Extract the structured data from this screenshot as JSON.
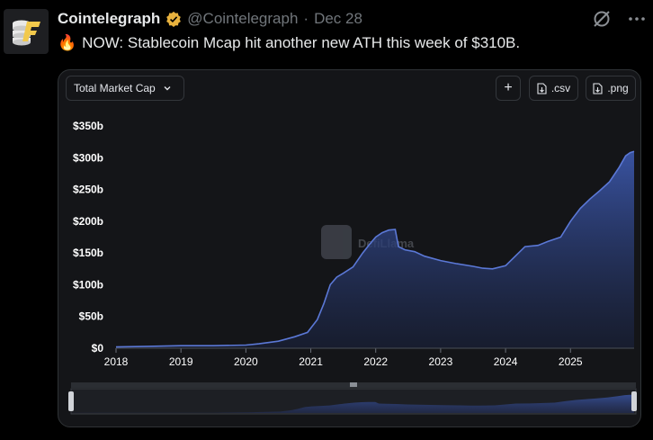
{
  "tweet": {
    "author": "Cointelegraph",
    "handle": "@Cointelegraph",
    "separator": "·",
    "date": "Dec 28",
    "text": "NOW: Stablecoin Mcap hit another new ATH this week of $310B.",
    "fire_emoji": "🔥"
  },
  "widget": {
    "metric_select": "Total Market Cap",
    "add_label": "+",
    "csv_label": ".csv",
    "png_label": ".png",
    "watermark": "DefiLlama"
  },
  "colors": {
    "accent_fill": "#3b56a8",
    "line": "#5b78d6",
    "badge": "#e8b23e"
  },
  "chart_data": {
    "type": "area",
    "title": "",
    "xlabel": "",
    "ylabel": "",
    "x_ticks": [
      "2018",
      "2019",
      "2020",
      "2021",
      "2022",
      "2023",
      "2024",
      "2025"
    ],
    "y_ticks": [
      "$0",
      "$50b",
      "$100b",
      "$150b",
      "$200b",
      "$250b",
      "$300b",
      "$350b"
    ],
    "ylim": [
      0,
      350
    ],
    "xlim": [
      2018.0,
      2025.98
    ],
    "series": [
      {
        "values_unit": "billion USD",
        "x": [
          2018.0,
          2018.5,
          2019.0,
          2019.5,
          2020.0,
          2020.2,
          2020.5,
          2020.75,
          2020.95,
          2021.1,
          2021.2,
          2021.3,
          2021.4,
          2021.5,
          2021.65,
          2021.8,
          2021.9,
          2022.0,
          2022.1,
          2022.2,
          2022.3,
          2022.35,
          2022.45,
          2022.6,
          2022.75,
          2023.0,
          2023.25,
          2023.5,
          2023.65,
          2023.8,
          2024.0,
          2024.15,
          2024.3,
          2024.5,
          2024.65,
          2024.85,
          2025.0,
          2025.15,
          2025.3,
          2025.45,
          2025.6,
          2025.75,
          2025.85,
          2025.92,
          2025.98
        ],
        "values": [
          2,
          3,
          4,
          4,
          5,
          7,
          11,
          18,
          25,
          45,
          70,
          100,
          112,
          118,
          128,
          150,
          163,
          175,
          182,
          186,
          187,
          160,
          155,
          152,
          145,
          138,
          133,
          129,
          126,
          125,
          130,
          145,
          160,
          162,
          168,
          175,
          200,
          220,
          235,
          248,
          262,
          285,
          303,
          308,
          310
        ]
      }
    ],
    "grid": false,
    "legend": "none",
    "scrubber": true
  }
}
